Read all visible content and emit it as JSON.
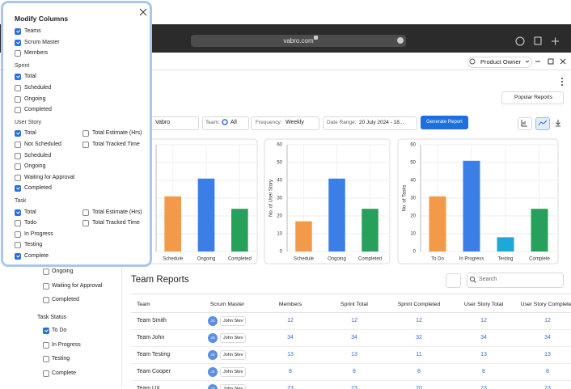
{
  "browser": {
    "url": "vabro.com"
  },
  "header": {
    "user": "Product Owner",
    "popular_reports": "Popular Reports"
  },
  "filters": {
    "project": "Vabro",
    "team_label": "Team:",
    "team_value": "All",
    "frequency_label": "Frequency:",
    "frequency_value": "Weekly",
    "date_label": "Date Range:",
    "date_value": "20 July 2024 - 18...",
    "button": "Generate Report"
  },
  "chart_data": [
    {
      "type": "bar",
      "categories": [
        "Schedule",
        "Ongoing",
        "Completed"
      ],
      "values": [
        31,
        41,
        24
      ],
      "colors": [
        "#f29a4a",
        "#3b7fe6",
        "#26a05a"
      ],
      "ylim": [
        0,
        60
      ],
      "yticks": [
        0,
        10,
        20,
        30,
        40,
        50,
        60
      ],
      "grid": true
    },
    {
      "type": "bar",
      "y_label": "No. of User Story",
      "categories": [
        "Schedule",
        "Ongoing",
        "Completed"
      ],
      "values": [
        17,
        41,
        24
      ],
      "colors": [
        "#f29a4a",
        "#3b7fe6",
        "#26a05a"
      ],
      "ylim": [
        0,
        60
      ],
      "yticks": [
        0,
        10,
        20,
        30,
        40,
        50,
        60
      ],
      "grid": true
    },
    {
      "type": "bar",
      "y_label": "No. of Tasks",
      "categories": [
        "To Do",
        "In Progress",
        "Testing",
        "Complete"
      ],
      "values": [
        31,
        51,
        8,
        24
      ],
      "colors": [
        "#f29a4a",
        "#3b7fe6",
        "#1ea8d8",
        "#26a05a"
      ],
      "ylim": [
        0,
        60
      ],
      "yticks": [
        0,
        10,
        20,
        30,
        40,
        50,
        60
      ],
      "grid": true
    }
  ],
  "table": {
    "title": "Team Reports",
    "search_placeholder": "Search",
    "columns": [
      "Team",
      "Scrum Master",
      "Members",
      "Sprint Total",
      "Sprint Completed",
      "User Story Total",
      "User Story Completed"
    ],
    "rows": [
      {
        "team": "Team Smith",
        "initials": "JS",
        "scrum_master": "John Stev",
        "values": [
          12,
          12,
          12,
          12,
          12
        ]
      },
      {
        "team": "Team John",
        "initials": "JS",
        "scrum_master": "John Stev",
        "values": [
          34,
          34,
          32,
          34,
          34
        ]
      },
      {
        "team": "Team Testing",
        "initials": "JS",
        "scrum_master": "John Stev",
        "values": [
          13,
          13,
          11,
          13,
          13
        ]
      },
      {
        "team": "Team Cooper",
        "initials": "JS",
        "scrum_master": "John Stev",
        "values": [
          8,
          8,
          8,
          8,
          8
        ]
      },
      {
        "team": "Team UX",
        "initials": "JS",
        "scrum_master": "John Stev",
        "values": [
          23,
          23,
          20,
          23,
          23
        ]
      }
    ]
  },
  "sidebar": {
    "options": [
      {
        "label": "Ongoing",
        "checked": false
      },
      {
        "label": "Waiting for Approval",
        "checked": false
      },
      {
        "label": "Completed",
        "checked": false
      }
    ],
    "task_status": {
      "label": "Task Status",
      "options": [
        {
          "label": "To Do",
          "checked": true
        },
        {
          "label": "In Progress",
          "checked": false
        },
        {
          "label": "Testing",
          "checked": false
        },
        {
          "label": "Complete",
          "checked": false
        }
      ]
    }
  },
  "modal": {
    "title": "Modify Columns",
    "base_options": [
      {
        "label": "Teams",
        "checked": true
      },
      {
        "label": "Scrum Master",
        "checked": true
      },
      {
        "label": "Members",
        "checked": false
      }
    ],
    "groups": [
      {
        "label": "Sprint",
        "options": [
          {
            "label": "Total",
            "checked": true
          },
          {
            "label": "Scheduled",
            "checked": false
          },
          {
            "label": "Ongoing",
            "checked": false
          },
          {
            "label": "Completed",
            "checked": false
          }
        ]
      },
      {
        "label": "User Story",
        "options": [
          {
            "label": "Total",
            "checked": true
          },
          {
            "label": "Not Scheduled",
            "checked": false
          },
          {
            "label": "Scheduled",
            "checked": false
          },
          {
            "label": "Ongoing",
            "checked": false
          },
          {
            "label": "Waiting for Approval",
            "checked": false
          },
          {
            "label": "Completed",
            "checked": true
          }
        ],
        "extra_options": [
          {
            "label": "Total Estimate (Hrs)",
            "checked": false
          },
          {
            "label": "Total Tracked Time",
            "checked": false
          }
        ]
      },
      {
        "label": "Task",
        "options": [
          {
            "label": "Total",
            "checked": true
          },
          {
            "label": "Todo",
            "checked": false
          },
          {
            "label": "In Progress",
            "checked": false
          },
          {
            "label": "Testing",
            "checked": false
          },
          {
            "label": "Complete",
            "checked": true
          }
        ],
        "extra_options": [
          {
            "label": "Total Estimate (Hrs)",
            "checked": false
          },
          {
            "label": "Total Tracked Time",
            "checked": false
          }
        ]
      }
    ]
  }
}
